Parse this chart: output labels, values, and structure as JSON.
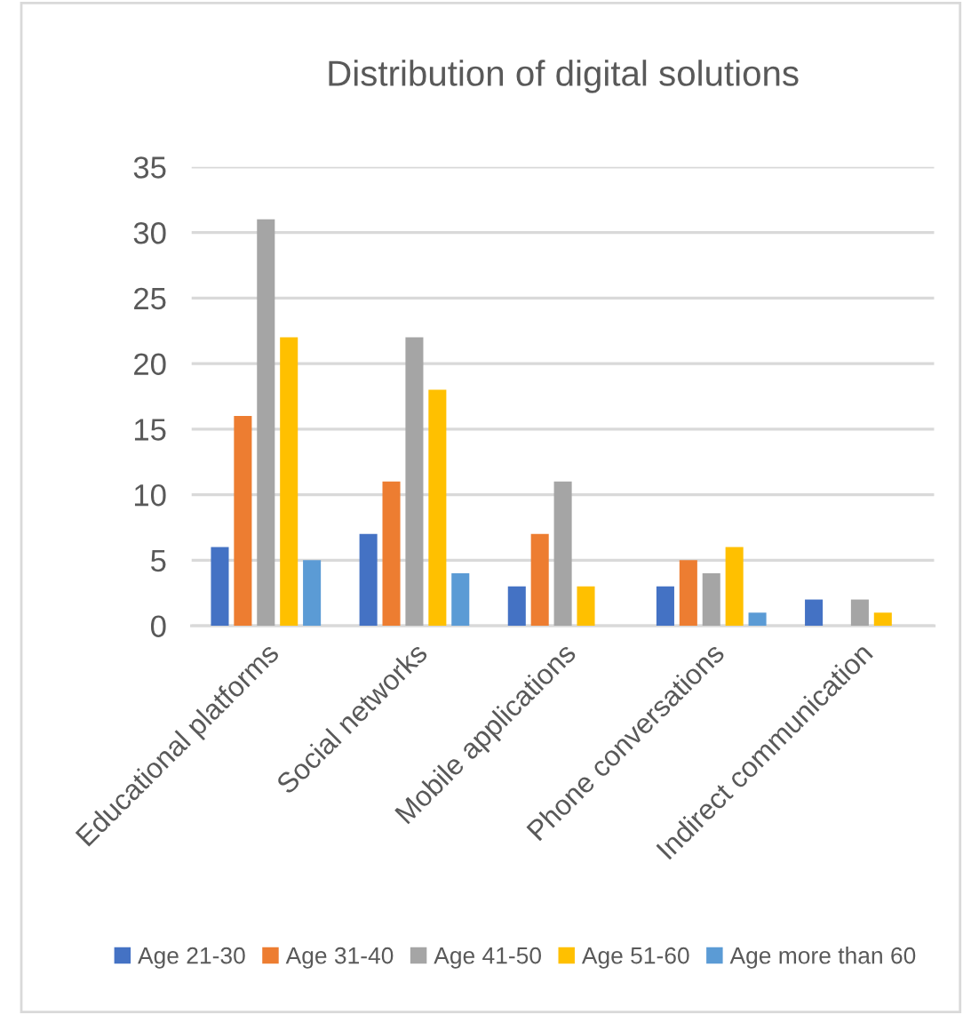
{
  "chart_data": {
    "type": "bar",
    "title": "Distribution of digital solutions",
    "categories": [
      "Educational platforms",
      "Social networks",
      "Mobile applications",
      "Phone conversations",
      "Indirect communication"
    ],
    "series": [
      {
        "name": "Age 21-30",
        "color": "#4472c4",
        "values": [
          6,
          7,
          3,
          3,
          2
        ]
      },
      {
        "name": "Age 31-40",
        "color": "#ed7d31",
        "values": [
          16,
          11,
          7,
          5,
          null
        ]
      },
      {
        "name": "Age 41-50",
        "color": "#a5a5a5",
        "values": [
          31,
          22,
          11,
          4,
          2
        ]
      },
      {
        "name": "Age 51-60",
        "color": "#ffc000",
        "values": [
          22,
          18,
          3,
          6,
          1
        ]
      },
      {
        "name": "Age more than 60",
        "color": "#5b9bd5",
        "values": [
          5,
          4,
          null,
          1,
          null
        ]
      }
    ],
    "ylim": [
      0,
      35
    ],
    "yticks": [
      0,
      5,
      10,
      15,
      20,
      25,
      30,
      35
    ],
    "grid": "y",
    "legend": "bottom"
  }
}
